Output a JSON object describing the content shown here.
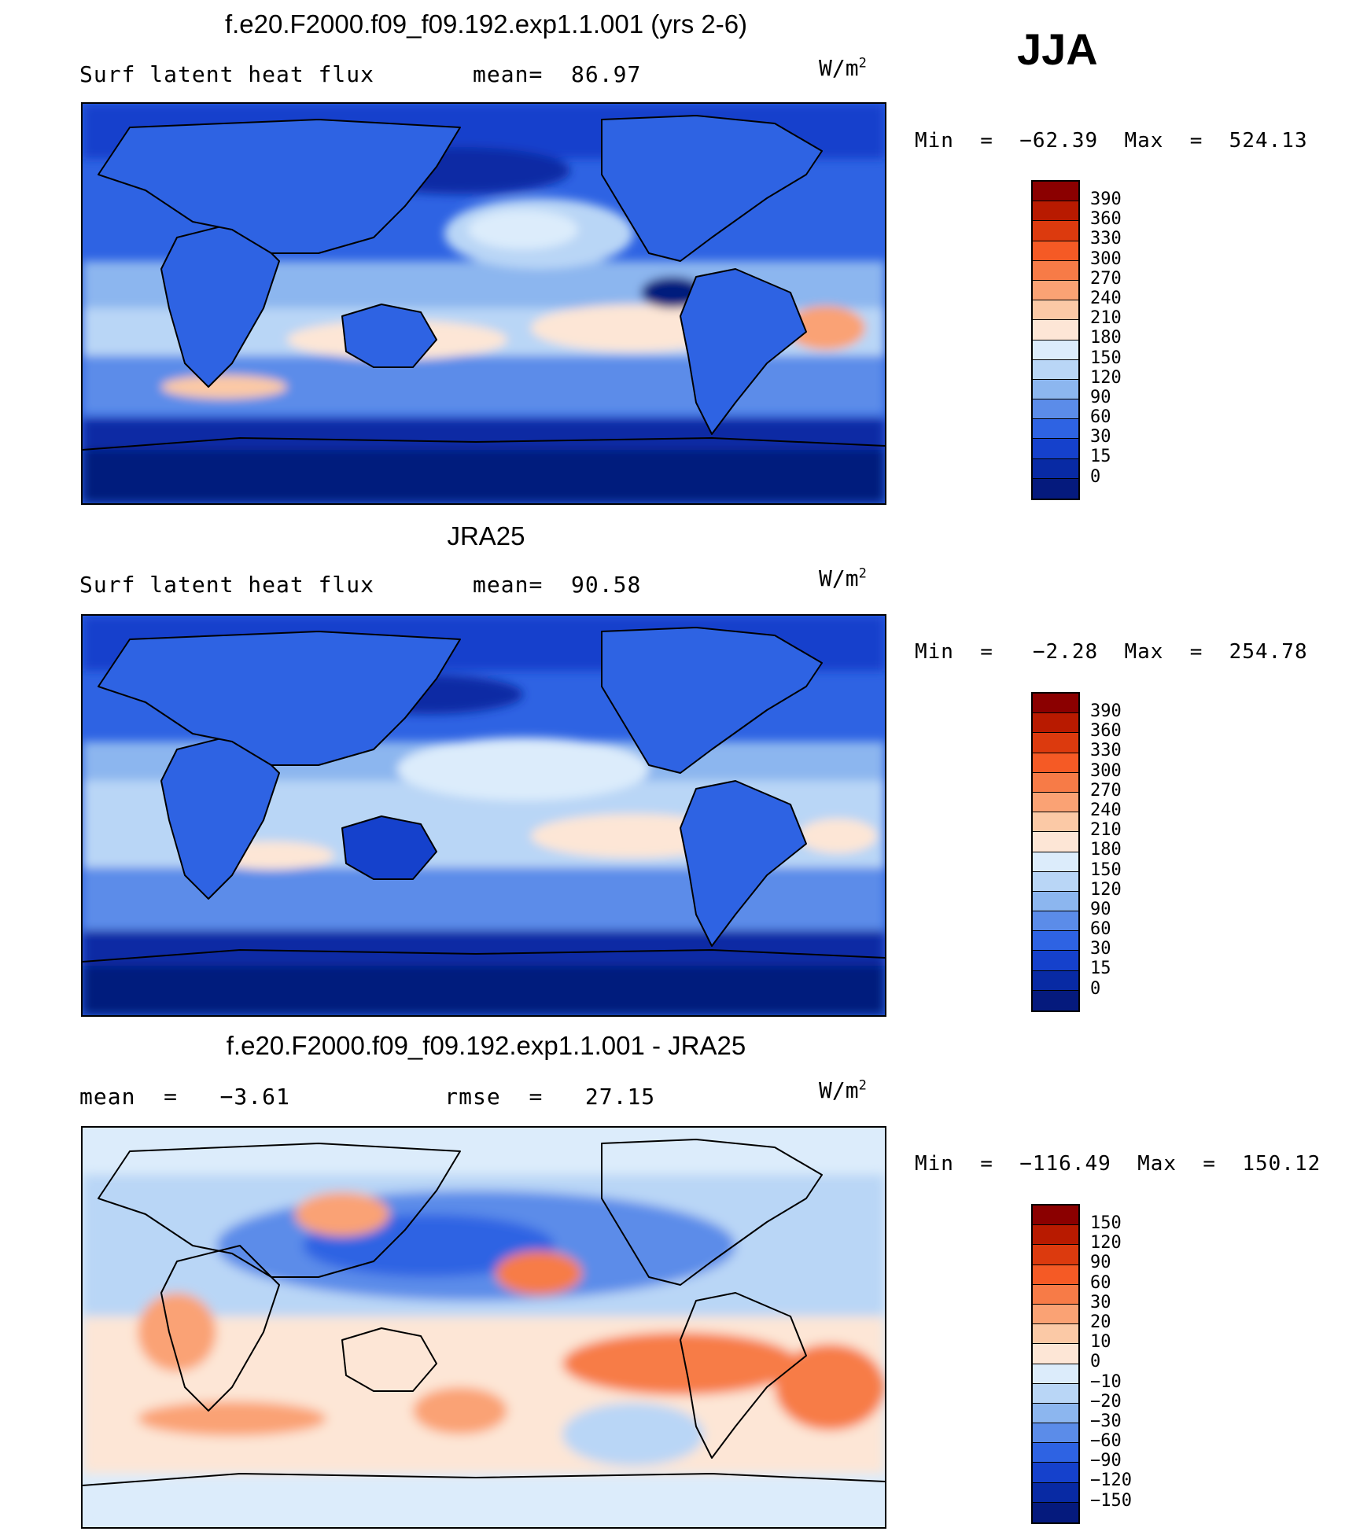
{
  "season": "JJA",
  "units_base": "W/m",
  "units_exp": "2",
  "panels": [
    {
      "title": "f.e20.F2000.f09_f09.192.exp1.1.001 (yrs 2-6)",
      "subtitle": "Surf latent heat flux       mean=  86.97",
      "minmax": "Min  =  −62.39  Max  =  524.13",
      "scale": "abs"
    },
    {
      "title": "JRA25",
      "subtitle": "Surf latent heat flux       mean=  90.58",
      "minmax": "Min  =   −2.28  Max  =  254.78",
      "scale": "abs"
    },
    {
      "title": "f.e20.F2000.f09_f09.192.exp1.1.001 - JRA25",
      "subtitle": "mean  =   −3.61           rmse  =   27.15",
      "minmax": "Min  =  −116.49  Max  =  150.12",
      "scale": "diff"
    }
  ],
  "colorbars": {
    "abs": {
      "labels": [
        "390",
        "360",
        "330",
        "300",
        "270",
        "240",
        "210",
        "180",
        "150",
        "120",
        "90",
        "60",
        "30",
        "15",
        "0"
      ],
      "colors": [
        "#8b0000",
        "#b81a00",
        "#dc3a0e",
        "#f55a25",
        "#f77b47",
        "#faa274",
        "#fbc9a6",
        "#fde6d6",
        "#dcecfb",
        "#b9d6f6",
        "#8cb6ef",
        "#5b8ce9",
        "#2e63e3",
        "#1541cc",
        "#082aa4",
        "#051a7d"
      ]
    },
    "diff": {
      "labels": [
        "150",
        "120",
        "90",
        "60",
        "30",
        "20",
        "10",
        "0",
        "−10",
        "−20",
        "−30",
        "−60",
        "−90",
        "−120",
        "−150"
      ],
      "colors": [
        "#8b0000",
        "#b81a00",
        "#dc3a0e",
        "#f55a25",
        "#f77b47",
        "#faa274",
        "#fbc9a6",
        "#fde6d6",
        "#dcecfb",
        "#b9d6f6",
        "#8cb6ef",
        "#5b8ce9",
        "#2e63e3",
        "#1541cc",
        "#082aa4",
        "#051a7d"
      ]
    }
  }
}
